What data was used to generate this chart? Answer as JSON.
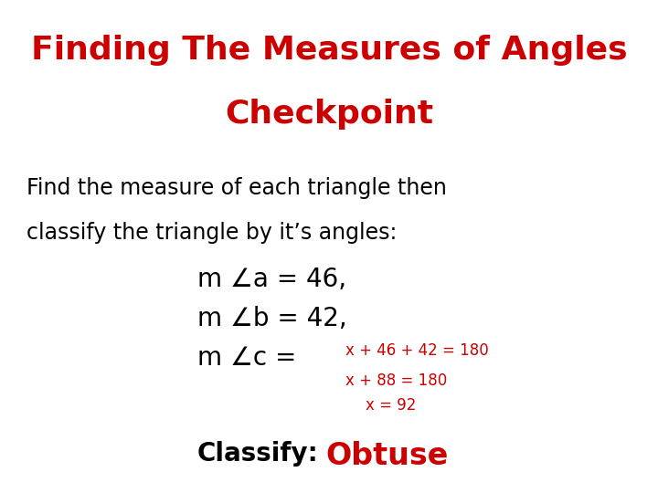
{
  "title_line1": "Finding The Measures of Angles",
  "title_line2": "Checkpoint",
  "title_color": "#cc0000",
  "title_fontsize": 26,
  "subtitle_line1": "Find the measure of each triangle then",
  "subtitle_line2": "classify the triangle by it’s angles:",
  "subtitle_color": "#000000",
  "subtitle_fontsize": 17,
  "line1": "m ∠a = 46,",
  "line2": "m ∠b = 42,",
  "line3_prefix": "m ∠c = ",
  "line3_red": "x + 46 + 42 = 180",
  "line4_red": "x + 88 = 180",
  "line5_red": "x = 92",
  "classify_label": "Classify:",
  "classify_value": "Obtuse",
  "black_color": "#000000",
  "red_color": "#cc0000",
  "body_fontsize": 20,
  "red_fontsize": 12,
  "classify_label_fontsize": 20,
  "classify_value_fontsize": 24,
  "background_color": "#ffffff"
}
